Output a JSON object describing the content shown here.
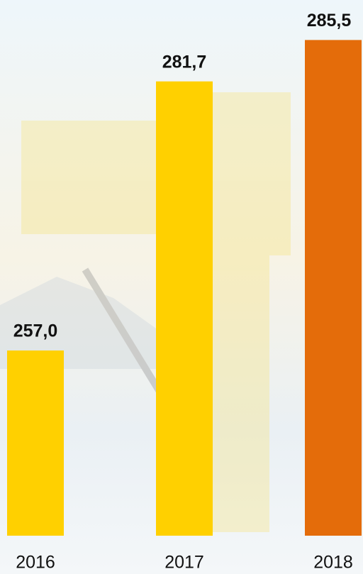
{
  "chart_data": {
    "type": "bar",
    "categories": [
      "2016",
      "2017",
      "2018"
    ],
    "values": [
      257.0,
      281.7,
      285.5
    ],
    "value_labels": [
      "257,0",
      "281,7",
      "285,5"
    ],
    "colors": [
      "#ffd000",
      "#ffd000",
      "#e46c0a"
    ],
    "ylim": [
      240,
      288
    ]
  }
}
